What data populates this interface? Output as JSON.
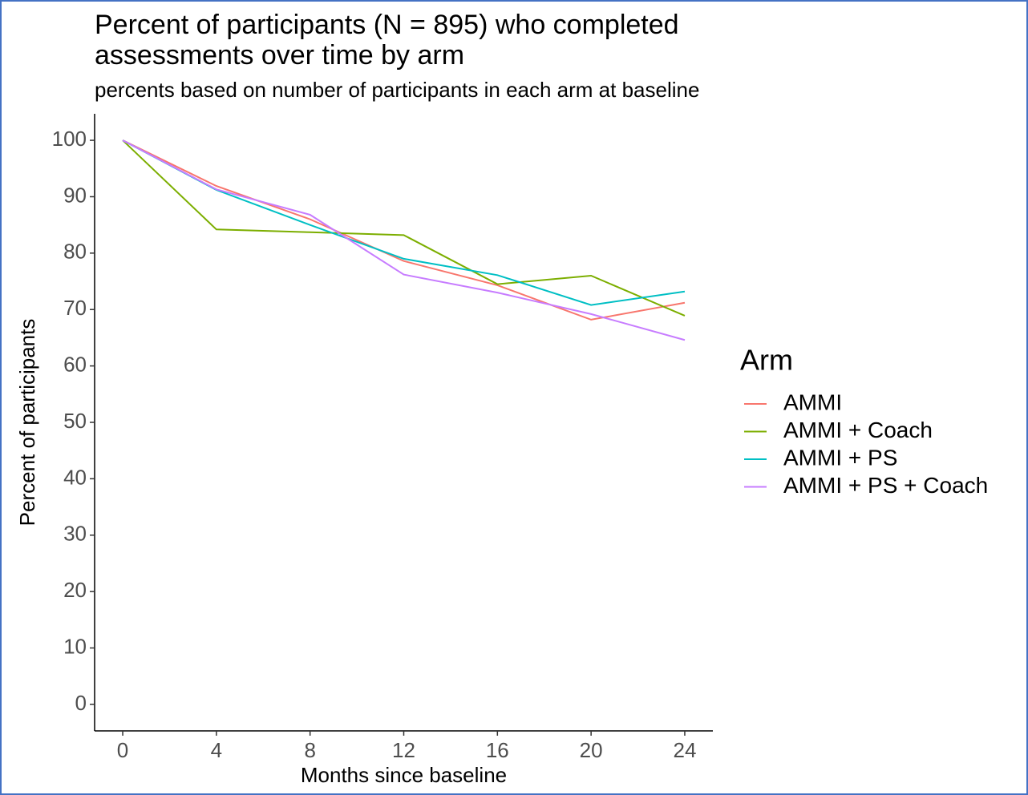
{
  "chart_data": {
    "type": "line",
    "title": [
      "Percent of participants (N = 895) who completed",
      "assessments over time by arm"
    ],
    "subtitle": "percents based on number of participants in each arm at baseline",
    "x_label": "Months since baseline",
    "y_label": "Percent of participants",
    "legend_title": "Arm",
    "legend_position": "right",
    "x": [
      0,
      4,
      8,
      12,
      16,
      20,
      24
    ],
    "series": [
      {
        "name": "AMMI",
        "color": "#F8766D",
        "values": [
          100,
          91.9,
          86,
          78.6,
          74.3,
          68.2,
          71.2
        ]
      },
      {
        "name": "AMMI + Coach",
        "color": "#7CAE00",
        "values": [
          100,
          84.2,
          83.7,
          83.2,
          74.5,
          76,
          68.9
        ]
      },
      {
        "name": "AMMI + PS",
        "color": "#00BFC4",
        "values": [
          100,
          91.2,
          85,
          79,
          76.1,
          70.8,
          73.2
        ]
      },
      {
        "name": "AMMI + PS + Coach",
        "color": "#C77CFF",
        "values": [
          100,
          91.3,
          86.8,
          76.2,
          73,
          69.2,
          64.6
        ]
      }
    ],
    "xlim": [
      -1.2,
      25.2
    ],
    "xticks": [
      0,
      4,
      8,
      12,
      16,
      20,
      24
    ],
    "ylim": [
      -4.7,
      104.7
    ],
    "yticks": [
      0,
      10,
      20,
      30,
      40,
      50,
      60,
      70,
      80,
      90,
      100
    ],
    "grid": false
  }
}
